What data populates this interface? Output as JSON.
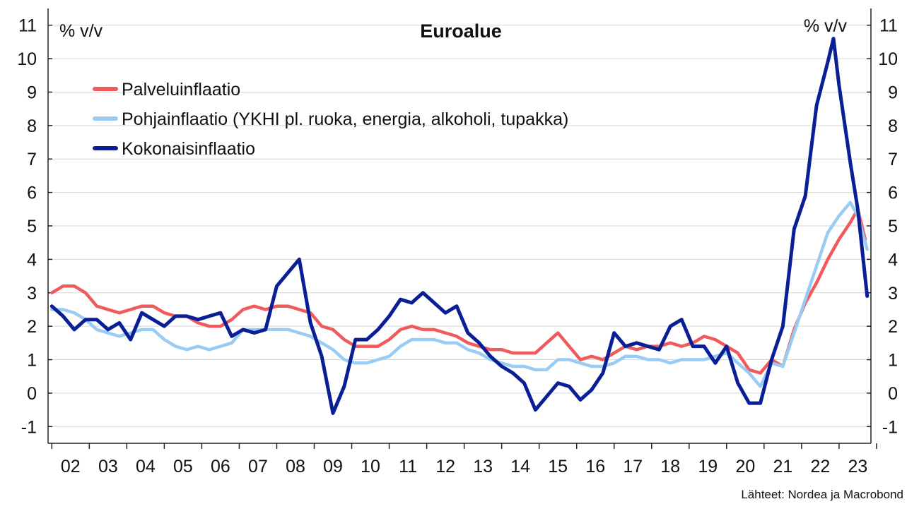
{
  "chart_data": {
    "type": "line",
    "title": "Euroalue",
    "y_unit_left": "% v/v",
    "y_unit_right": "% v/v",
    "ylim": [
      -1.5,
      11.5
    ],
    "yticks": [
      -1,
      0,
      1,
      2,
      3,
      4,
      5,
      6,
      7,
      8,
      9,
      10,
      11
    ],
    "ytick_labels": [
      "-1",
      "0",
      "1",
      "2",
      "3",
      "4",
      "5",
      "6",
      "7",
      "8",
      "9",
      "10",
      "11"
    ],
    "xlim": [
      2001.9,
      2023.85
    ],
    "x_tick_labels": [
      "02",
      "03",
      "04",
      "05",
      "06",
      "07",
      "08",
      "09",
      "10",
      "11",
      "12",
      "13",
      "14",
      "15",
      "16",
      "17",
      "18",
      "19",
      "20",
      "21",
      "22",
      "23"
    ],
    "x_tick_years": [
      2002,
      2003,
      2004,
      2005,
      2006,
      2007,
      2008,
      2009,
      2010,
      2011,
      2012,
      2013,
      2014,
      2015,
      2016,
      2017,
      2018,
      2019,
      2020,
      2021,
      2022,
      2023
    ],
    "grid": "horizontal",
    "legend_position": "top-left",
    "source": "Lähteet: Nordea ja Macrobond",
    "series": [
      {
        "name": "Palveluinflaatio",
        "color": "#f05a5a",
        "x": [
          2002.0,
          2002.3,
          2002.6,
          2002.9,
          2003.2,
          2003.5,
          2003.8,
          2004.1,
          2004.4,
          2004.7,
          2005.0,
          2005.3,
          2005.6,
          2005.9,
          2006.2,
          2006.5,
          2006.8,
          2007.1,
          2007.4,
          2007.7,
          2008.0,
          2008.3,
          2008.6,
          2008.9,
          2009.2,
          2009.5,
          2009.8,
          2010.1,
          2010.4,
          2010.7,
          2011.0,
          2011.3,
          2011.6,
          2011.9,
          2012.2,
          2012.5,
          2012.8,
          2013.1,
          2013.4,
          2013.7,
          2014.0,
          2014.3,
          2014.6,
          2014.9,
          2015.2,
          2015.5,
          2015.8,
          2016.1,
          2016.4,
          2016.7,
          2017.0,
          2017.3,
          2017.6,
          2017.9,
          2018.2,
          2018.5,
          2018.8,
          2019.1,
          2019.4,
          2019.7,
          2020.0,
          2020.3,
          2020.6,
          2020.9,
          2021.2,
          2021.5,
          2021.8,
          2022.1,
          2022.4,
          2022.7,
          2023.0,
          2023.3,
          2023.5,
          2023.7
        ],
        "y": [
          3.0,
          3.2,
          3.2,
          3.0,
          2.6,
          2.5,
          2.4,
          2.5,
          2.6,
          2.6,
          2.4,
          2.3,
          2.3,
          2.1,
          2.0,
          2.0,
          2.2,
          2.5,
          2.6,
          2.5,
          2.6,
          2.6,
          2.5,
          2.4,
          2.0,
          1.9,
          1.6,
          1.4,
          1.4,
          1.4,
          1.6,
          1.9,
          2.0,
          1.9,
          1.9,
          1.8,
          1.7,
          1.5,
          1.4,
          1.3,
          1.3,
          1.2,
          1.2,
          1.2,
          1.5,
          1.8,
          1.4,
          1.0,
          1.1,
          1.0,
          1.2,
          1.4,
          1.3,
          1.4,
          1.4,
          1.5,
          1.4,
          1.5,
          1.7,
          1.6,
          1.4,
          1.2,
          0.7,
          0.6,
          1.0,
          0.8,
          1.9,
          2.7,
          3.3,
          4.0,
          4.6,
          5.1,
          5.5,
          4.6
        ]
      },
      {
        "name": "Pohjainflaatio (YKHI pl. ruoka, energia, alkoholi, tupakka)",
        "color": "#99ccf5",
        "x": [
          2002.0,
          2002.3,
          2002.6,
          2002.9,
          2003.2,
          2003.5,
          2003.8,
          2004.1,
          2004.4,
          2004.7,
          2005.0,
          2005.3,
          2005.6,
          2005.9,
          2006.2,
          2006.5,
          2006.8,
          2007.1,
          2007.4,
          2007.7,
          2008.0,
          2008.3,
          2008.6,
          2008.9,
          2009.2,
          2009.5,
          2009.8,
          2010.1,
          2010.4,
          2010.7,
          2011.0,
          2011.3,
          2011.6,
          2011.9,
          2012.2,
          2012.5,
          2012.8,
          2013.1,
          2013.4,
          2013.7,
          2014.0,
          2014.3,
          2014.6,
          2014.9,
          2015.2,
          2015.5,
          2015.8,
          2016.1,
          2016.4,
          2016.7,
          2017.0,
          2017.3,
          2017.6,
          2017.9,
          2018.2,
          2018.5,
          2018.8,
          2019.1,
          2019.4,
          2019.7,
          2020.0,
          2020.3,
          2020.6,
          2020.9,
          2021.2,
          2021.5,
          2021.8,
          2022.1,
          2022.4,
          2022.7,
          2023.0,
          2023.3,
          2023.5,
          2023.75
        ],
        "y": [
          2.5,
          2.5,
          2.4,
          2.2,
          1.9,
          1.8,
          1.7,
          1.8,
          1.9,
          1.9,
          1.6,
          1.4,
          1.3,
          1.4,
          1.3,
          1.4,
          1.5,
          1.9,
          1.9,
          1.9,
          1.9,
          1.9,
          1.8,
          1.7,
          1.5,
          1.3,
          1.0,
          0.9,
          0.9,
          1.0,
          1.1,
          1.4,
          1.6,
          1.6,
          1.6,
          1.5,
          1.5,
          1.3,
          1.2,
          1.0,
          0.9,
          0.8,
          0.8,
          0.7,
          0.7,
          1.0,
          1.0,
          0.9,
          0.8,
          0.8,
          0.9,
          1.1,
          1.1,
          1.0,
          1.0,
          0.9,
          1.0,
          1.0,
          1.0,
          1.1,
          1.2,
          0.9,
          0.6,
          0.2,
          0.9,
          0.8,
          1.8,
          2.8,
          3.8,
          4.8,
          5.3,
          5.7,
          5.3,
          4.3
        ]
      },
      {
        "name": "Kokonaisinflaatio",
        "color": "#0a1f96",
        "x": [
          2002.0,
          2002.3,
          2002.6,
          2002.9,
          2003.2,
          2003.5,
          2003.8,
          2004.1,
          2004.4,
          2004.7,
          2005.0,
          2005.3,
          2005.6,
          2005.9,
          2006.2,
          2006.5,
          2006.8,
          2007.1,
          2007.4,
          2007.7,
          2008.0,
          2008.3,
          2008.6,
          2008.9,
          2009.2,
          2009.5,
          2009.8,
          2010.1,
          2010.4,
          2010.7,
          2011.0,
          2011.3,
          2011.6,
          2011.9,
          2012.2,
          2012.5,
          2012.8,
          2013.1,
          2013.4,
          2013.7,
          2014.0,
          2014.3,
          2014.6,
          2014.9,
          2015.2,
          2015.5,
          2015.8,
          2016.1,
          2016.4,
          2016.7,
          2017.0,
          2017.3,
          2017.6,
          2017.9,
          2018.2,
          2018.5,
          2018.8,
          2019.1,
          2019.4,
          2019.7,
          2020.0,
          2020.3,
          2020.6,
          2020.9,
          2021.2,
          2021.5,
          2021.8,
          2022.1,
          2022.4,
          2022.7,
          2022.85,
          2023.0,
          2023.3,
          2023.5,
          2023.75
        ],
        "y": [
          2.6,
          2.3,
          1.9,
          2.2,
          2.2,
          1.9,
          2.1,
          1.6,
          2.4,
          2.2,
          2.0,
          2.3,
          2.3,
          2.2,
          2.3,
          2.4,
          1.7,
          1.9,
          1.8,
          1.9,
          3.2,
          3.6,
          4.0,
          2.1,
          1.1,
          -0.6,
          0.2,
          1.6,
          1.6,
          1.9,
          2.3,
          2.8,
          2.7,
          3.0,
          2.7,
          2.4,
          2.6,
          1.8,
          1.5,
          1.1,
          0.8,
          0.6,
          0.3,
          -0.5,
          -0.1,
          0.3,
          0.2,
          -0.2,
          0.1,
          0.6,
          1.8,
          1.4,
          1.5,
          1.4,
          1.3,
          2.0,
          2.2,
          1.4,
          1.4,
          0.9,
          1.4,
          0.3,
          -0.3,
          -0.3,
          1.0,
          2.0,
          4.9,
          5.9,
          8.6,
          9.9,
          10.6,
          9.2,
          6.9,
          5.5,
          2.9
        ]
      }
    ]
  }
}
